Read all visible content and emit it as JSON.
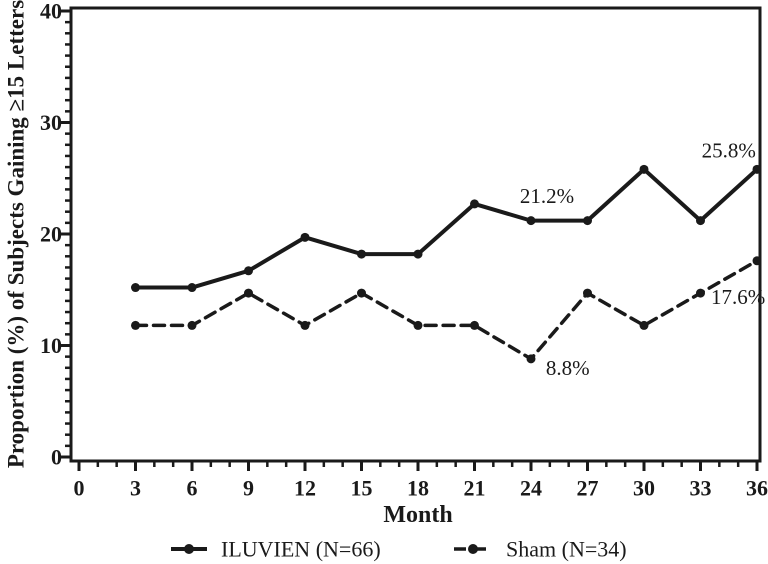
{
  "figure": {
    "background": "#ffffff",
    "ink": "#1a1a1a"
  },
  "chart_data": {
    "type": "line",
    "title": "",
    "xlabel": "Month",
    "ylabel": "Proportion (%) of Subjects Gaining ≥15 Letters",
    "xlim": [
      0,
      36
    ],
    "ylim": [
      0,
      40
    ],
    "x_major_ticks": [
      0,
      3,
      6,
      9,
      12,
      15,
      18,
      21,
      24,
      27,
      30,
      33,
      36
    ],
    "x_minor_step": 1,
    "y_major_ticks": [
      0,
      10,
      20,
      30,
      40
    ],
    "y_minor_step": 1,
    "grid": false,
    "legend_position": "bottom",
    "x": [
      3,
      6,
      9,
      12,
      15,
      18,
      21,
      24,
      27,
      30,
      33,
      36
    ],
    "series": [
      {
        "name": "ILUVIEN (N=66)",
        "line_style": "solid",
        "marker": "filled-circle",
        "values": [
          15.2,
          15.2,
          16.7,
          19.7,
          18.2,
          18.2,
          22.7,
          21.2,
          21.2,
          25.8,
          21.2,
          25.8
        ]
      },
      {
        "name": "Sham (N=34)",
        "line_style": "dashed",
        "marker": "filled-circle",
        "values": [
          11.8,
          11.8,
          14.7,
          11.8,
          14.7,
          11.8,
          11.8,
          8.8,
          14.7,
          11.8,
          14.7,
          17.6
        ]
      }
    ],
    "annotations": [
      {
        "text": "21.2%",
        "x": 24.85,
        "y": 23.4
      },
      {
        "text": "25.8%",
        "x": 34.5,
        "y": 27.5
      },
      {
        "text": "8.8%",
        "x": 25.95,
        "y": 8.0
      },
      {
        "text": "17.6%",
        "x": 35.0,
        "y": 14.35
      }
    ]
  }
}
